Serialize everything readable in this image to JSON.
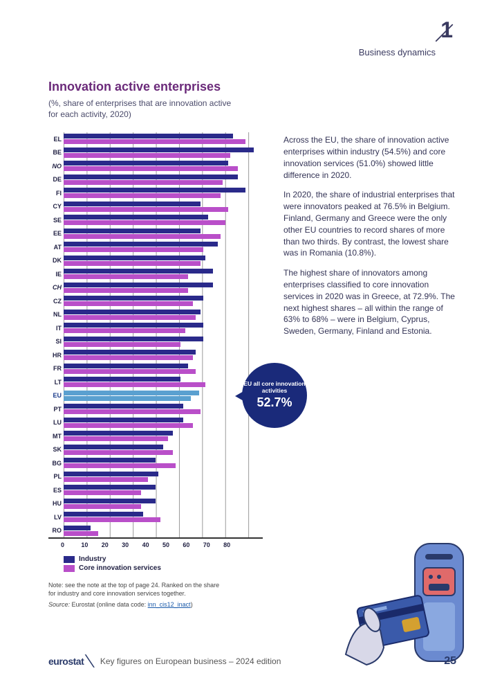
{
  "header": {
    "chapter_number": "1",
    "chapter_title": "Business dynamics"
  },
  "title": "Innovation active enterprises",
  "subtitle": "(%, share of enterprises that are innovation active for each activity, 2020)",
  "paragraphs": [
    "Across the EU, the share of innovation active enterprises within industry (54.5%) and core innovation services (51.0%) showed little difference in 2020.",
    "In 2020, the share of industrial enterprises that were innovators peaked at 76.5% in Belgium. Finland, Germany and Greece were the only other EU countries to record shares of more than two thirds. By contrast, the lowest share was in Romania (10.8%).",
    "The highest share of innovators among enterprises classified to core innovation services in 2020 was in Greece, at 72.9%. The next highest shares – all within the range of 63% to 68% – were in Belgium, Cyprus, Sweden, Germany, Finland and Estonia."
  ],
  "chart": {
    "type": "bar",
    "x_max": 80,
    "x_ticks": [
      0,
      10,
      20,
      30,
      40,
      50,
      60,
      70,
      80
    ],
    "colors": {
      "industry": "#2a2a8a",
      "services": "#b94fc9",
      "eu_highlight": "#5aa0d0",
      "callout_bg": "#1a2a7a"
    },
    "countries": [
      {
        "code": "EL",
        "industry": 68,
        "services": 73,
        "style": "normal"
      },
      {
        "code": "BE",
        "industry": 76.5,
        "services": 67,
        "style": "normal"
      },
      {
        "code": "NO",
        "industry": 66,
        "services": 70,
        "style": "italic"
      },
      {
        "code": "DE",
        "industry": 70,
        "services": 64,
        "style": "normal"
      },
      {
        "code": "FI",
        "industry": 73,
        "services": 63,
        "style": "normal"
      },
      {
        "code": "CY",
        "industry": 55,
        "services": 66,
        "style": "normal"
      },
      {
        "code": "SE",
        "industry": 58,
        "services": 65,
        "style": "normal"
      },
      {
        "code": "EE",
        "industry": 55,
        "services": 63,
        "style": "normal"
      },
      {
        "code": "AT",
        "industry": 62,
        "services": 56,
        "style": "normal"
      },
      {
        "code": "DK",
        "industry": 57,
        "services": 55,
        "style": "normal"
      },
      {
        "code": "IE",
        "industry": 60,
        "services": 50,
        "style": "normal"
      },
      {
        "code": "CH",
        "industry": 60,
        "services": 50,
        "style": "italic"
      },
      {
        "code": "CZ",
        "industry": 56,
        "services": 52,
        "style": "normal"
      },
      {
        "code": "NL",
        "industry": 55,
        "services": 53,
        "style": "normal"
      },
      {
        "code": "IT",
        "industry": 56,
        "services": 49,
        "style": "normal"
      },
      {
        "code": "SI",
        "industry": 56,
        "services": 47,
        "style": "normal"
      },
      {
        "code": "HR",
        "industry": 53,
        "services": 52,
        "style": "normal"
      },
      {
        "code": "FR",
        "industry": 50,
        "services": 53,
        "style": "normal"
      },
      {
        "code": "LT",
        "industry": 47,
        "services": 57,
        "style": "normal"
      },
      {
        "code": "EU",
        "industry": 54.5,
        "services": 51,
        "style": "eu"
      },
      {
        "code": "PT",
        "industry": 48,
        "services": 55,
        "style": "normal"
      },
      {
        "code": "LU",
        "industry": 48,
        "services": 52,
        "style": "normal"
      },
      {
        "code": "MT",
        "industry": 44,
        "services": 42,
        "style": "normal"
      },
      {
        "code": "SK",
        "industry": 40,
        "services": 44,
        "style": "normal"
      },
      {
        "code": "BG",
        "industry": 37,
        "services": 45,
        "style": "normal"
      },
      {
        "code": "PL",
        "industry": 38,
        "services": 34,
        "style": "normal"
      },
      {
        "code": "ES",
        "industry": 37,
        "services": 31,
        "style": "normal"
      },
      {
        "code": "HU",
        "industry": 37,
        "services": 31,
        "style": "normal"
      },
      {
        "code": "LV",
        "industry": 32,
        "services": 39,
        "style": "normal"
      },
      {
        "code": "RO",
        "industry": 10.8,
        "services": 14,
        "style": "normal"
      }
    ],
    "legend": [
      {
        "label": "Industry",
        "color": "#2a2a8a"
      },
      {
        "label": "Core innovation services",
        "color": "#b94fc9"
      }
    ],
    "callout": {
      "label": "EU all core innovation activities",
      "value": "52.7%",
      "row_index": 19
    }
  },
  "notes": {
    "note": "Note: see the note at the top of page 24. Ranked on the share for industry and core innovation services together.",
    "source_prefix": "Source:",
    "source_text": "Eurostat (online data code:",
    "source_link": "inn_cis12_inact",
    "source_suffix": ")"
  },
  "footer": {
    "logo": "eurostat",
    "text": "Key figures on European business – 2024 edition",
    "page": "25"
  }
}
